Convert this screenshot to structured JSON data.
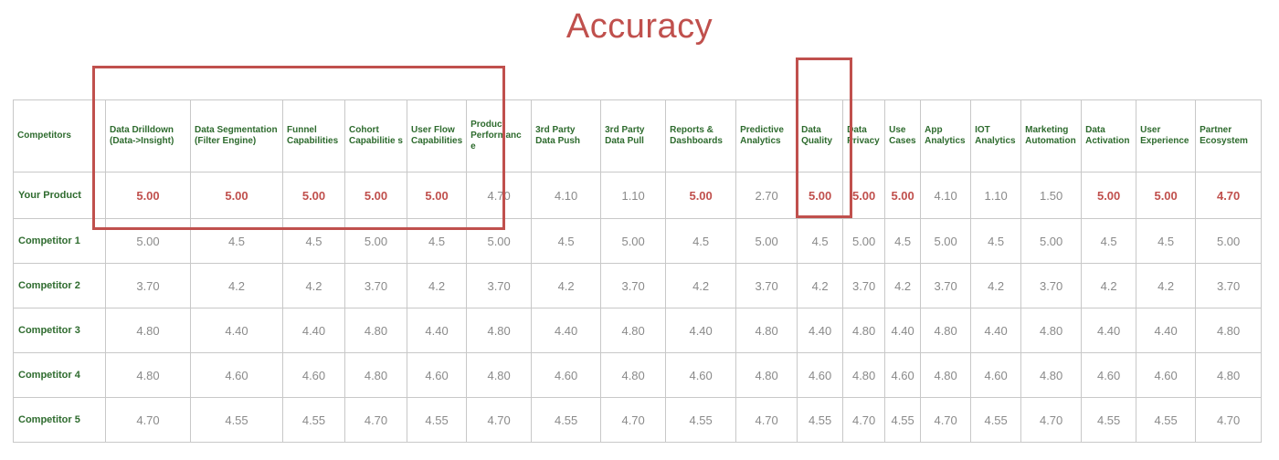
{
  "title": "Accuracy",
  "columns": [
    "Competitors",
    "Data Drilldown (Data->Insight)",
    "Data Segmentation (Filter Engine)",
    "Funnel Capabilities",
    "Cohort Capabilitie s",
    "User Flow Capabilities",
    "Product Performanc e",
    "3rd Party Data Push",
    "3rd Party Data Pull",
    "Reports & Dashboards",
    "Predictive Analytics",
    "Data Quality",
    "Data Privacy",
    "Use Cases",
    "App Analytics",
    "IOT Analytics",
    "Marketing Automation",
    "Data Activation",
    "User Experience",
    "Partner Ecosystem"
  ],
  "rows": [
    {
      "name": "Your Product",
      "values": [
        "5.00",
        "5.00",
        "5.00",
        "5.00",
        "5.00",
        "4.70",
        "4.10",
        "1.10",
        "5.00",
        "2.70",
        "5.00",
        "5.00",
        "5.00",
        "4.10",
        "1.10",
        "1.50",
        "5.00",
        "5.00",
        "4.70"
      ]
    },
    {
      "name": "Competitor 1",
      "values": [
        "5.00",
        "4.5",
        "4.5",
        "5.00",
        "4.5",
        "5.00",
        "4.5",
        "5.00",
        "4.5",
        "5.00",
        "4.5",
        "5.00",
        "4.5",
        "5.00",
        "4.5",
        "5.00",
        "4.5",
        "4.5",
        "5.00"
      ]
    },
    {
      "name": "Competitor 2",
      "values": [
        "3.70",
        "4.2",
        "4.2",
        "3.70",
        "4.2",
        "3.70",
        "4.2",
        "3.70",
        "4.2",
        "3.70",
        "4.2",
        "3.70",
        "4.2",
        "3.70",
        "4.2",
        "3.70",
        "4.2",
        "4.2",
        "3.70"
      ]
    },
    {
      "name": "Competitor 3",
      "values": [
        "4.80",
        "4.40",
        "4.40",
        "4.80",
        "4.40",
        "4.80",
        "4.40",
        "4.80",
        "4.40",
        "4.80",
        "4.40",
        "4.80",
        "4.40",
        "4.80",
        "4.40",
        "4.80",
        "4.40",
        "4.40",
        "4.80"
      ]
    },
    {
      "name": "Competitor 4",
      "values": [
        "4.80",
        "4.60",
        "4.60",
        "4.80",
        "4.60",
        "4.80",
        "4.60",
        "4.80",
        "4.60",
        "4.80",
        "4.60",
        "4.80",
        "4.60",
        "4.80",
        "4.60",
        "4.80",
        "4.60",
        "4.60",
        "4.80"
      ]
    },
    {
      "name": "Competitor 5",
      "values": [
        "4.70",
        "4.55",
        "4.55",
        "4.70",
        "4.55",
        "4.70",
        "4.55",
        "4.70",
        "4.55",
        "4.70",
        "4.55",
        "4.70",
        "4.55",
        "4.70",
        "4.55",
        "4.70",
        "4.55",
        "4.55",
        "4.70"
      ]
    }
  ],
  "highlight_indices": [
    0,
    1,
    2,
    3,
    4,
    8,
    10,
    11,
    12,
    16,
    17,
    18
  ],
  "colors": {
    "accent": "#c0504d",
    "label": "#2e6b2e",
    "value": "#8a8a8a"
  }
}
